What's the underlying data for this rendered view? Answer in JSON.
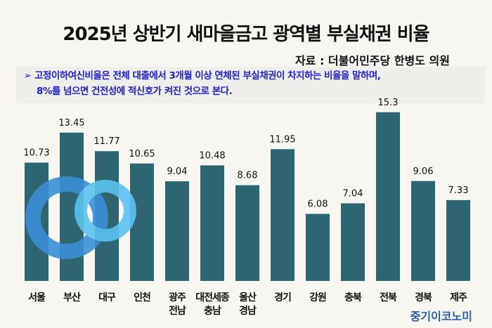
{
  "header": {
    "title": "2025년 상반기 새마을금고 광역별 부실채권 비율",
    "source": "자료 : 더불어민주당 한병도 의원"
  },
  "note": {
    "marker": "➢",
    "line1": "고정이하여신비율은 전체 대출에서 3개월 이상 연체된 부실채권이 차지하는 비율을 말하며,",
    "line2": "8%를 넘으면 건전성에 적신호가 켜진 것으로 본다."
  },
  "brand": "중기이코노미",
  "colors": {
    "bar": "#2d6670",
    "note_text": "#1f1fd0",
    "brand": "#2a5db0"
  },
  "chart_data": {
    "type": "bar",
    "categories": [
      [
        "서울"
      ],
      [
        "부산"
      ],
      [
        "대구"
      ],
      [
        "인천"
      ],
      [
        "광주",
        "전남"
      ],
      [
        "대전세종",
        "충남"
      ],
      [
        "울산",
        "경남"
      ],
      [
        "경기"
      ],
      [
        "강원"
      ],
      [
        "충북"
      ],
      [
        "전북"
      ],
      [
        "경북"
      ],
      [
        "제주"
      ]
    ],
    "values": [
      10.73,
      13.45,
      11.77,
      10.65,
      9.04,
      10.48,
      8.68,
      11.95,
      6.08,
      7.04,
      15.3,
      9.06,
      7.33
    ],
    "labels": [
      "10.73",
      "13.45",
      "11.77",
      "10.65",
      "9.04",
      "10.48",
      "8.68",
      "11.95",
      "6.08",
      "7.04",
      "15.3",
      "9.06",
      "7.33"
    ],
    "ylim": [
      0,
      16
    ],
    "grid": false
  }
}
